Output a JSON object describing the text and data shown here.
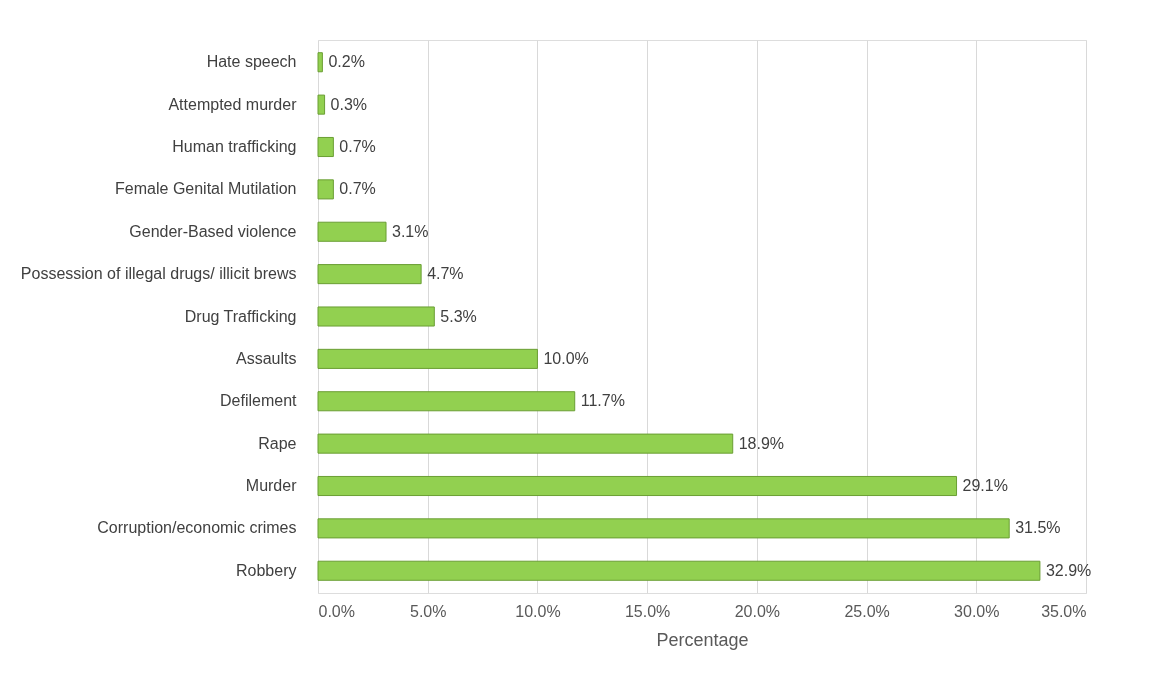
{
  "chart_data": {
    "type": "bar",
    "orientation": "horizontal",
    "xlabel": "Percentage",
    "categories": [
      "Hate speech",
      "Attempted murder",
      "Human trafficking",
      "Female Genital Mutilation",
      "Gender-Based violence",
      "Possession of illegal drugs/ illicit brews",
      "Drug Trafficking",
      "Assaults",
      "Defilement",
      "Rape",
      "Murder",
      "Corruption/economic crimes",
      "Robbery"
    ],
    "values": [
      0.2,
      0.3,
      0.7,
      0.7,
      3.1,
      4.7,
      5.3,
      10.0,
      11.7,
      18.9,
      29.1,
      31.5,
      32.9
    ],
    "value_labels": [
      "0.2%",
      "0.3%",
      "0.7%",
      "0.7%",
      "3.1%",
      "4.7%",
      "5.3%",
      "10.0%",
      "11.7%",
      "18.9%",
      "29.1%",
      "31.5%",
      "32.9%"
    ],
    "color": "#92d050",
    "xlim": [
      0,
      35
    ],
    "xticks": [
      {
        "value": 0,
        "label": "0.0%"
      },
      {
        "value": 5,
        "label": "5.0%"
      },
      {
        "value": 10,
        "label": "10.0%"
      },
      {
        "value": 15,
        "label": "15.0%"
      },
      {
        "value": 20,
        "label": "20.0%"
      },
      {
        "value": 25,
        "label": "25.0%"
      },
      {
        "value": 30,
        "label": "30.0%"
      },
      {
        "value": 35,
        "label": "35.0%"
      }
    ],
    "grid": "x"
  }
}
